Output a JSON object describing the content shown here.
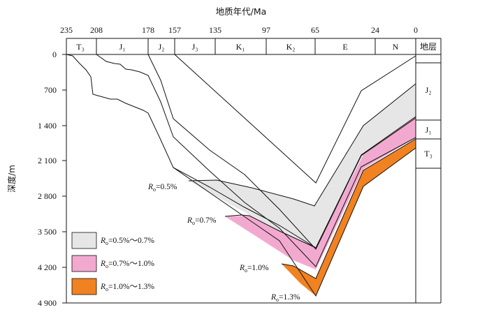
{
  "x_axis": {
    "title": "地质年代/Ma",
    "ticks": [
      "235",
      "208",
      "178",
      "157",
      "135",
      "97",
      "65",
      "24",
      "0"
    ]
  },
  "y_axis": {
    "title": "深度/m",
    "ticks": [
      "0",
      "700",
      "1 400",
      "2 100",
      "2 800",
      "3 500",
      "4 200",
      "4 900"
    ]
  },
  "periods": {
    "items": [
      "T₃",
      "J₁",
      "J₂",
      "J₃",
      "K₁",
      "K₂",
      "E",
      "N"
    ],
    "header": "地层"
  },
  "strata_column": [
    "J₂",
    "J₁",
    "T₃"
  ],
  "ro_labels": [
    {
      "sym": "R",
      "sub": "o",
      "val": "=0.5%"
    },
    {
      "sym": "R",
      "sub": "o",
      "val": "=0.7%"
    },
    {
      "sym": "R",
      "sub": "o",
      "val": "=1.0%"
    },
    {
      "sym": "R",
      "sub": "o",
      "val": "=1.3%"
    }
  ],
  "legend": [
    {
      "sym": "R",
      "sub": "o",
      "val": "=0.5%～0.7%",
      "color": "#e6e6e6"
    },
    {
      "sym": "R",
      "sub": "o",
      "val": "=0.7%～1.0%",
      "color": "#f2a9cf"
    },
    {
      "sym": "R",
      "sub": "o",
      "val": "=1.0%～1.3%",
      "color": "#f08222"
    }
  ],
  "colors": {
    "gray_zone": "#e6e6e6",
    "pink_zone": "#f2a9cf",
    "orange_zone": "#f08222",
    "line": "#111111"
  }
}
